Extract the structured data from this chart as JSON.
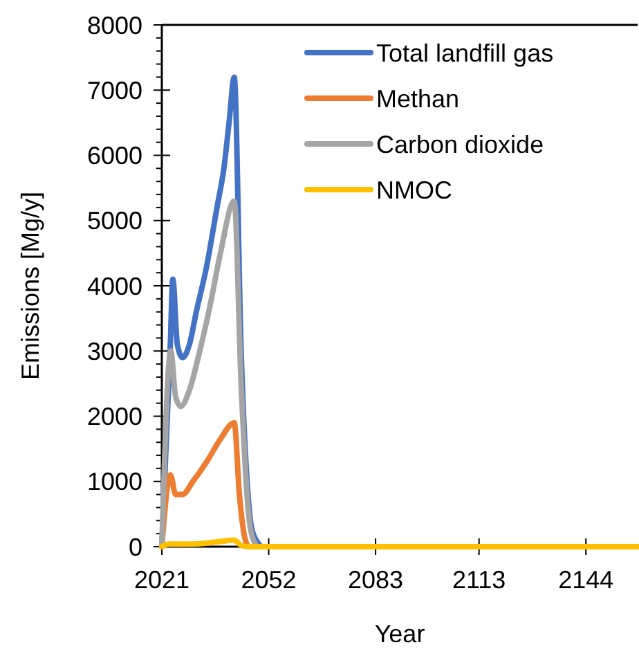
{
  "chart_data": {
    "type": "line",
    "xlabel": "Year",
    "ylabel": "Emissions [Mg/y]",
    "xlim": [
      2021,
      2159
    ],
    "xticks": [
      2021,
      2052,
      2083,
      2113,
      2144
    ],
    "ylim": [
      0,
      8000
    ],
    "yticks": [
      0,
      1000,
      2000,
      3000,
      4000,
      5000,
      6000,
      7000,
      8000
    ],
    "legend": "top right",
    "grid": false,
    "marker": "none",
    "line_style": "solid",
    "series": [
      {
        "name": "Total landfill gas",
        "color": "#4472c4",
        "x": [
          2021,
          2023.4,
          2024.2,
          2025.5,
          2027,
          2029,
          2031,
          2034,
          2037,
          2039,
          2040.5,
          2042,
          2044,
          2046,
          2047,
          2049,
          2050,
          2159
        ],
        "values": [
          0,
          3000,
          4100,
          3100,
          2900,
          3100,
          3600,
          4300,
          5200,
          5800,
          6500,
          7200,
          3000,
          800,
          300,
          50,
          0,
          0
        ]
      },
      {
        "name": "Methan",
        "color": "#ed7d31",
        "x": [
          2021,
          2023.5,
          2025,
          2027,
          2030,
          2034,
          2038,
          2042,
          2043.5,
          2045,
          2046
        ],
        "values": [
          0,
          1100,
          800,
          800,
          1000,
          1300,
          1650,
          1900,
          800,
          150,
          0
        ]
      },
      {
        "name": "Carbon dioxide",
        "color": "#a5a5a5",
        "x": [
          2021,
          2023.6,
          2025,
          2026.5,
          2029,
          2032,
          2035,
          2038,
          2042,
          2044,
          2046,
          2047,
          2049,
          2159
        ],
        "values": [
          0,
          3000,
          2300,
          2150,
          2400,
          3000,
          3700,
          4500,
          5300,
          2500,
          600,
          200,
          0,
          0
        ]
      },
      {
        "name": "NMOC",
        "color": "#ffc000",
        "x": [
          2021,
          2023,
          2030,
          2038,
          2042,
          2044,
          2046,
          2159
        ],
        "values": [
          0,
          40,
          40,
          80,
          100,
          20,
          0,
          0
        ]
      }
    ]
  }
}
